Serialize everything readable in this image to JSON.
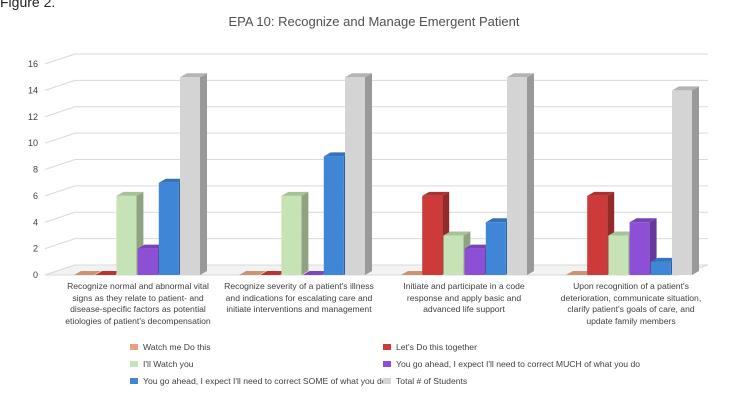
{
  "figure_label": "Figure 2.",
  "chart_data": {
    "type": "bar",
    "title": "EPA 10: Recognize and Manage Emergent Patient",
    "xlabel": "",
    "ylabel": "",
    "ylim": [
      0,
      16
    ],
    "yticks": [
      0,
      2,
      4,
      6,
      8,
      10,
      12,
      14,
      16
    ],
    "grid": true,
    "legend_position": "bottom",
    "categories": [
      "Recognize normal and abnormal vital signs as they relate to patient- and disease-specific factors as potential etiologies of patient's decompensation",
      "Recognize severity of a patient's illness and indications for escalating care and initiate interventions and management",
      "Initiate and participate in a code response and apply basic and advanced life support",
      "Upon recognition of a patient's deterioration, communicate situation, clarify patient's goals of care, and update family members"
    ],
    "category_lines": [
      [
        "Recognize normal and abnormal vital",
        "signs as they relate to patient- and",
        "disease-specific factors as potential",
        "etiologies of patient's decompensation"
      ],
      [
        "Recognize severity of a patient's illness",
        "and indications for escalating care and",
        "initiate interventions and management"
      ],
      [
        "Initiate and participate in a code",
        "response and apply basic and",
        "advanced life support"
      ],
      [
        "Upon recognition of a patient's",
        "deterioration, communicate situation,",
        "clarify patient's goals of care, and",
        "update family members"
      ]
    ],
    "series": [
      {
        "name": "Watch me Do this",
        "color": "#e2a47e",
        "values": [
          0,
          0,
          0,
          0
        ]
      },
      {
        "name": "Let's Do this together",
        "color": "#cc3a3a",
        "values": [
          0,
          0,
          6,
          6
        ]
      },
      {
        "name": "I'll Watch you",
        "color": "#c6e3b5",
        "values": [
          6,
          6,
          3,
          3
        ]
      },
      {
        "name": "You go ahead, I expect I'll need to correct MUCH of what you do",
        "color": "#8c4fd6",
        "values": [
          2,
          0,
          2,
          4
        ]
      },
      {
        "name": "You go ahead, I expect I'll need to correct SOME of what you do",
        "color": "#3f86d6",
        "values": [
          7,
          9,
          4,
          1
        ]
      },
      {
        "name": "Total # of Students",
        "color": "#d4d4d4",
        "values": [
          15,
          15,
          15,
          14
        ]
      }
    ]
  }
}
